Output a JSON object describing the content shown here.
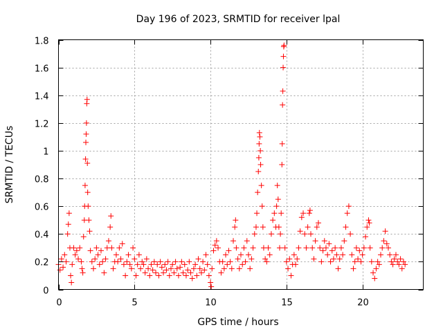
{
  "chart_data": {
    "type": "scatter",
    "title": "Day 196 of 2023, SRMTID for receiver lpal",
    "xlabel": "GPS time / hours",
    "ylabel": "SRMTID / TECUs",
    "xlim": [
      0,
      24
    ],
    "ylim": [
      0,
      1.8
    ],
    "xticks": [
      0,
      5,
      10,
      15,
      20
    ],
    "xtick_labels": [
      "0",
      "5",
      "10",
      "15",
      "20"
    ],
    "yticks": [
      0,
      0.2,
      0.4,
      0.6,
      0.8,
      1,
      1.2,
      1.4,
      1.6,
      1.8
    ],
    "ytick_labels": [
      "0",
      "0.2",
      "0.4",
      "0.6",
      "0.8",
      "1",
      "1.2",
      "1.4",
      "1.6",
      "1.8"
    ],
    "grid": true,
    "marker": "+",
    "series": [
      {
        "name": "SRMTID",
        "color": "#ff0000",
        "points": [
          [
            0.0,
            0.18
          ],
          [
            0.1,
            0.14
          ],
          [
            0.2,
            0.22
          ],
          [
            0.3,
            0.16
          ],
          [
            0.4,
            0.25
          ],
          [
            0.5,
            0.2
          ],
          [
            0.6,
            0.4
          ],
          [
            0.65,
            0.47
          ],
          [
            0.7,
            0.55
          ],
          [
            0.75,
            0.3
          ],
          [
            0.8,
            0.1
          ],
          [
            0.85,
            0.05
          ],
          [
            0.9,
            0.18
          ],
          [
            1.0,
            0.3
          ],
          [
            1.1,
            0.25
          ],
          [
            1.2,
            0.28
          ],
          [
            1.3,
            0.22
          ],
          [
            1.4,
            0.3
          ],
          [
            1.5,
            0.2
          ],
          [
            1.55,
            0.15
          ],
          [
            1.6,
            0.12
          ],
          [
            1.65,
            0.38
          ],
          [
            1.7,
            0.5
          ],
          [
            1.72,
            0.6
          ],
          [
            1.75,
            0.75
          ],
          [
            1.78,
            0.94
          ],
          [
            1.8,
            1.06
          ],
          [
            1.82,
            1.12
          ],
          [
            1.84,
            1.2
          ],
          [
            1.86,
            1.34
          ],
          [
            1.88,
            1.37
          ],
          [
            1.9,
            0.91
          ],
          [
            1.92,
            0.7
          ],
          [
            1.95,
            0.6
          ],
          [
            2.0,
            0.5
          ],
          [
            2.05,
            0.42
          ],
          [
            2.1,
            0.28
          ],
          [
            2.2,
            0.2
          ],
          [
            2.3,
            0.15
          ],
          [
            2.4,
            0.22
          ],
          [
            2.5,
            0.3
          ],
          [
            2.6,
            0.25
          ],
          [
            2.7,
            0.18
          ],
          [
            2.8,
            0.28
          ],
          [
            2.9,
            0.2
          ],
          [
            3.0,
            0.12
          ],
          [
            3.1,
            0.22
          ],
          [
            3.2,
            0.3
          ],
          [
            3.3,
            0.35
          ],
          [
            3.4,
            0.45
          ],
          [
            3.45,
            0.53
          ],
          [
            3.5,
            0.3
          ],
          [
            3.6,
            0.15
          ],
          [
            3.7,
            0.2
          ],
          [
            3.8,
            0.25
          ],
          [
            3.9,
            0.2
          ],
          [
            4.0,
            0.3
          ],
          [
            4.1,
            0.22
          ],
          [
            4.2,
            0.33
          ],
          [
            4.3,
            0.18
          ],
          [
            4.4,
            0.1
          ],
          [
            4.5,
            0.2
          ],
          [
            4.6,
            0.25
          ],
          [
            4.7,
            0.18
          ],
          [
            4.8,
            0.15
          ],
          [
            4.9,
            0.3
          ],
          [
            5.0,
            0.22
          ],
          [
            5.1,
            0.1
          ],
          [
            5.2,
            0.18
          ],
          [
            5.3,
            0.25
          ],
          [
            5.4,
            0.15
          ],
          [
            5.5,
            0.2
          ],
          [
            5.6,
            0.18
          ],
          [
            5.7,
            0.12
          ],
          [
            5.8,
            0.22
          ],
          [
            5.9,
            0.15
          ],
          [
            6.0,
            0.1
          ],
          [
            6.1,
            0.18
          ],
          [
            6.2,
            0.14
          ],
          [
            6.3,
            0.2
          ],
          [
            6.4,
            0.12
          ],
          [
            6.5,
            0.18
          ],
          [
            6.6,
            0.1
          ],
          [
            6.7,
            0.2
          ],
          [
            6.8,
            0.16
          ],
          [
            6.9,
            0.12
          ],
          [
            7.0,
            0.18
          ],
          [
            7.1,
            0.14
          ],
          [
            7.2,
            0.2
          ],
          [
            7.3,
            0.1
          ],
          [
            7.4,
            0.15
          ],
          [
            7.5,
            0.18
          ],
          [
            7.6,
            0.12
          ],
          [
            7.7,
            0.2
          ],
          [
            7.8,
            0.15
          ],
          [
            7.9,
            0.1
          ],
          [
            8.0,
            0.16
          ],
          [
            8.1,
            0.2
          ],
          [
            8.2,
            0.12
          ],
          [
            8.3,
            0.18
          ],
          [
            8.4,
            0.1
          ],
          [
            8.5,
            0.14
          ],
          [
            8.6,
            0.2
          ],
          [
            8.7,
            0.12
          ],
          [
            8.8,
            0.08
          ],
          [
            8.9,
            0.15
          ],
          [
            9.0,
            0.18
          ],
          [
            9.1,
            0.1
          ],
          [
            9.2,
            0.22
          ],
          [
            9.3,
            0.15
          ],
          [
            9.4,
            0.12
          ],
          [
            9.5,
            0.2
          ],
          [
            9.6,
            0.14
          ],
          [
            9.7,
            0.25
          ],
          [
            9.8,
            0.18
          ],
          [
            9.9,
            0.1
          ],
          [
            10.0,
            0.05
          ],
          [
            10.05,
            0.02
          ],
          [
            10.1,
            0.15
          ],
          [
            10.2,
            0.28
          ],
          [
            10.3,
            0.32
          ],
          [
            10.4,
            0.35
          ],
          [
            10.5,
            0.3
          ],
          [
            10.6,
            0.2
          ],
          [
            10.7,
            0.12
          ],
          [
            10.8,
            0.2
          ],
          [
            10.9,
            0.15
          ],
          [
            11.0,
            0.25
          ],
          [
            11.1,
            0.18
          ],
          [
            11.2,
            0.28
          ],
          [
            11.3,
            0.2
          ],
          [
            11.4,
            0.15
          ],
          [
            11.5,
            0.35
          ],
          [
            11.6,
            0.45
          ],
          [
            11.65,
            0.5
          ],
          [
            11.7,
            0.3
          ],
          [
            11.8,
            0.22
          ],
          [
            11.9,
            0.15
          ],
          [
            12.0,
            0.25
          ],
          [
            12.1,
            0.18
          ],
          [
            12.2,
            0.3
          ],
          [
            12.3,
            0.2
          ],
          [
            12.4,
            0.35
          ],
          [
            12.5,
            0.25
          ],
          [
            12.6,
            0.15
          ],
          [
            12.7,
            0.22
          ],
          [
            12.8,
            0.3
          ],
          [
            12.9,
            0.4
          ],
          [
            13.0,
            0.45
          ],
          [
            13.05,
            0.55
          ],
          [
            13.1,
            0.7
          ],
          [
            13.15,
            0.85
          ],
          [
            13.18,
            0.95
          ],
          [
            13.2,
            1.05
          ],
          [
            13.22,
            1.13
          ],
          [
            13.25,
            1.1
          ],
          [
            13.28,
            1.0
          ],
          [
            13.3,
            0.9
          ],
          [
            13.35,
            0.75
          ],
          [
            13.4,
            0.6
          ],
          [
            13.45,
            0.45
          ],
          [
            13.5,
            0.3
          ],
          [
            13.6,
            0.22
          ],
          [
            13.7,
            0.2
          ],
          [
            13.8,
            0.3
          ],
          [
            13.9,
            0.25
          ],
          [
            14.0,
            0.4
          ],
          [
            14.1,
            0.5
          ],
          [
            14.2,
            0.55
          ],
          [
            14.3,
            0.45
          ],
          [
            14.35,
            0.6
          ],
          [
            14.4,
            0.75
          ],
          [
            14.45,
            0.65
          ],
          [
            14.5,
            0.45
          ],
          [
            14.55,
            0.3
          ],
          [
            14.6,
            0.4
          ],
          [
            14.65,
            0.55
          ],
          [
            14.7,
            0.9
          ],
          [
            14.72,
            1.05
          ],
          [
            14.74,
            1.33
          ],
          [
            14.76,
            1.43
          ],
          [
            14.78,
            1.6
          ],
          [
            14.8,
            1.68
          ],
          [
            14.82,
            1.75
          ],
          [
            14.84,
            1.76
          ],
          [
            14.9,
            0.3
          ],
          [
            15.0,
            0.2
          ],
          [
            15.1,
            0.15
          ],
          [
            15.2,
            0.22
          ],
          [
            15.3,
            0.1
          ],
          [
            15.4,
            0.18
          ],
          [
            15.5,
            0.25
          ],
          [
            15.6,
            0.18
          ],
          [
            15.7,
            0.22
          ],
          [
            15.8,
            0.3
          ],
          [
            15.9,
            0.42
          ],
          [
            16.0,
            0.52
          ],
          [
            16.1,
            0.55
          ],
          [
            16.2,
            0.4
          ],
          [
            16.3,
            0.3
          ],
          [
            16.4,
            0.45
          ],
          [
            16.5,
            0.55
          ],
          [
            16.55,
            0.57
          ],
          [
            16.6,
            0.4
          ],
          [
            16.7,
            0.3
          ],
          [
            16.8,
            0.22
          ],
          [
            16.9,
            0.35
          ],
          [
            17.0,
            0.45
          ],
          [
            17.1,
            0.48
          ],
          [
            17.2,
            0.3
          ],
          [
            17.3,
            0.2
          ],
          [
            17.4,
            0.28
          ],
          [
            17.5,
            0.35
          ],
          [
            17.6,
            0.3
          ],
          [
            17.7,
            0.25
          ],
          [
            17.8,
            0.33
          ],
          [
            17.9,
            0.2
          ],
          [
            18.0,
            0.28
          ],
          [
            18.1,
            0.22
          ],
          [
            18.2,
            0.3
          ],
          [
            18.3,
            0.25
          ],
          [
            18.4,
            0.15
          ],
          [
            18.5,
            0.22
          ],
          [
            18.6,
            0.3
          ],
          [
            18.7,
            0.25
          ],
          [
            18.8,
            0.35
          ],
          [
            18.9,
            0.45
          ],
          [
            19.0,
            0.55
          ],
          [
            19.1,
            0.6
          ],
          [
            19.2,
            0.4
          ],
          [
            19.3,
            0.25
          ],
          [
            19.4,
            0.15
          ],
          [
            19.5,
            0.2
          ],
          [
            19.6,
            0.3
          ],
          [
            19.7,
            0.22
          ],
          [
            19.8,
            0.28
          ],
          [
            19.9,
            0.2
          ],
          [
            20.0,
            0.25
          ],
          [
            20.1,
            0.3
          ],
          [
            20.2,
            0.38
          ],
          [
            20.3,
            0.45
          ],
          [
            20.4,
            0.5
          ],
          [
            20.45,
            0.48
          ],
          [
            20.5,
            0.3
          ],
          [
            20.6,
            0.2
          ],
          [
            20.7,
            0.12
          ],
          [
            20.8,
            0.08
          ],
          [
            20.9,
            0.15
          ],
          [
            21.0,
            0.2
          ],
          [
            21.1,
            0.18
          ],
          [
            21.2,
            0.25
          ],
          [
            21.3,
            0.3
          ],
          [
            21.4,
            0.35
          ],
          [
            21.5,
            0.42
          ],
          [
            21.6,
            0.33
          ],
          [
            21.7,
            0.3
          ],
          [
            21.8,
            0.25
          ],
          [
            21.9,
            0.2
          ],
          [
            22.0,
            0.18
          ],
          [
            22.1,
            0.22
          ],
          [
            22.2,
            0.25
          ],
          [
            22.3,
            0.2
          ],
          [
            22.4,
            0.18
          ],
          [
            22.5,
            0.22
          ],
          [
            22.6,
            0.15
          ],
          [
            22.7,
            0.2
          ],
          [
            22.8,
            0.18
          ]
        ]
      }
    ]
  }
}
